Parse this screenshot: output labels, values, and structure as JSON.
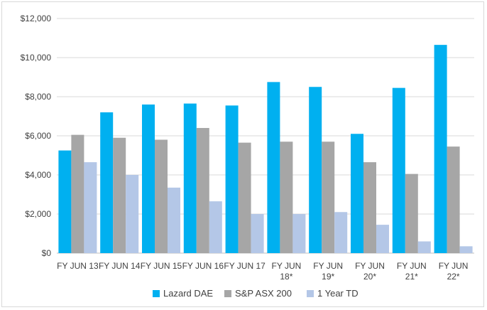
{
  "chart_data": {
    "type": "bar",
    "title": "",
    "xlabel": "",
    "ylabel": "",
    "ylim": [
      0,
      12000
    ],
    "yticks": [
      0,
      2000,
      4000,
      6000,
      8000,
      10000,
      12000
    ],
    "ytick_labels": [
      "$0",
      "$2,000",
      "$4,000",
      "$6,000",
      "$8,000",
      "$10,000",
      "$12,000"
    ],
    "grid": true,
    "legend_position": "bottom",
    "categories": [
      [
        "FY JUN 13"
      ],
      [
        "FY JUN 14"
      ],
      [
        "FY JUN 15"
      ],
      [
        "FY JUN 16"
      ],
      [
        "FY JUN 17"
      ],
      [
        "FY JUN",
        "18*"
      ],
      [
        "FY JUN",
        "19*"
      ],
      [
        "FY JUN",
        "20*"
      ],
      [
        "FY JUN",
        "21*"
      ],
      [
        "FY JUN",
        "22*"
      ]
    ],
    "series": [
      {
        "name": "Lazard DAE",
        "color": "#00b0f0",
        "values": [
          5250,
          7200,
          7600,
          7650,
          7550,
          8750,
          8500,
          6100,
          8450,
          10650
        ]
      },
      {
        "name": "S&P ASX 200",
        "color": "#a6a6a6",
        "values": [
          6050,
          5900,
          5800,
          6400,
          5650,
          5700,
          5700,
          4650,
          4050,
          5450
        ]
      },
      {
        "name": "1 Year TD",
        "color": "#b4c7e7",
        "values": [
          4650,
          4000,
          3350,
          2650,
          2000,
          2000,
          2100,
          1450,
          600,
          350
        ]
      }
    ]
  }
}
